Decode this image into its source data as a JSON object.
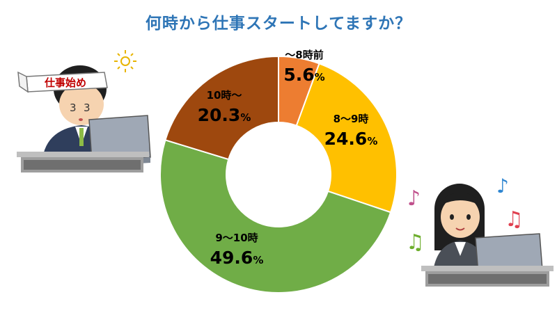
{
  "chart_data": {
    "type": "pie",
    "title": "何時から仕事スタートしてますか？",
    "slices": [
      {
        "label": "〜8時前",
        "value": 5.6,
        "display": "5.6",
        "color": "#ED7D31"
      },
      {
        "label": "8〜9時",
        "value": 24.6,
        "display": "24.6",
        "color": "#FFC000"
      },
      {
        "label": "9〜10時",
        "value": 49.6,
        "display": "49.6",
        "color": "#70AD47"
      },
      {
        "label": "10時〜",
        "value": 20.3,
        "display": "20.3",
        "color": "#9E480E"
      }
    ],
    "percent_sign": "%"
  },
  "colors": {
    "title": "#2E75B6"
  },
  "illustrations": {
    "left": {
      "headband_text": "仕事始め"
    }
  }
}
